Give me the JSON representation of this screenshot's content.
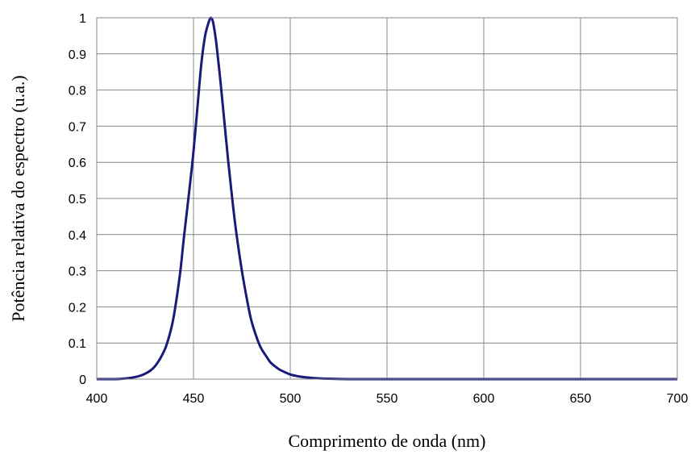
{
  "chart_data": {
    "type": "line",
    "title": "",
    "xlabel": "Comprimento de onda (nm)",
    "ylabel": "Potência relativa do espectro (u.a.)",
    "xlim": [
      400,
      700
    ],
    "ylim": [
      0,
      1
    ],
    "x_ticks": [
      "400",
      "450",
      "500",
      "550",
      "600",
      "650",
      "700"
    ],
    "y_ticks": [
      "0",
      "0.1",
      "0.2",
      "0.3",
      "0.4",
      "0.5",
      "0.6",
      "0.7",
      "0.8",
      "0.9",
      "1"
    ],
    "grid": true,
    "legend": "none",
    "colors": {
      "series": "#1a1a7a",
      "grid": "#888888"
    },
    "series": [
      {
        "x": [
          400,
          410,
          415,
          420,
          425,
          430,
          435,
          438,
          440,
          443,
          445,
          448,
          450,
          452,
          454,
          456,
          458,
          459,
          460,
          461,
          462,
          464,
          466,
          468,
          470,
          472,
          475,
          478,
          480,
          483,
          485,
          488,
          490,
          493,
          495,
          500,
          505,
          510,
          515,
          520,
          530,
          540,
          550,
          600,
          650,
          700
        ],
        "y": [
          0.0,
          0.0,
          0.002,
          0.006,
          0.015,
          0.035,
          0.08,
          0.13,
          0.18,
          0.29,
          0.39,
          0.53,
          0.63,
          0.75,
          0.87,
          0.95,
          0.99,
          1.0,
          0.99,
          0.96,
          0.92,
          0.82,
          0.71,
          0.6,
          0.5,
          0.41,
          0.3,
          0.21,
          0.16,
          0.11,
          0.085,
          0.06,
          0.045,
          0.032,
          0.025,
          0.013,
          0.007,
          0.004,
          0.002,
          0.001,
          0.0,
          0.0,
          0.0,
          0.0,
          0.0,
          0.0
        ]
      }
    ]
  }
}
